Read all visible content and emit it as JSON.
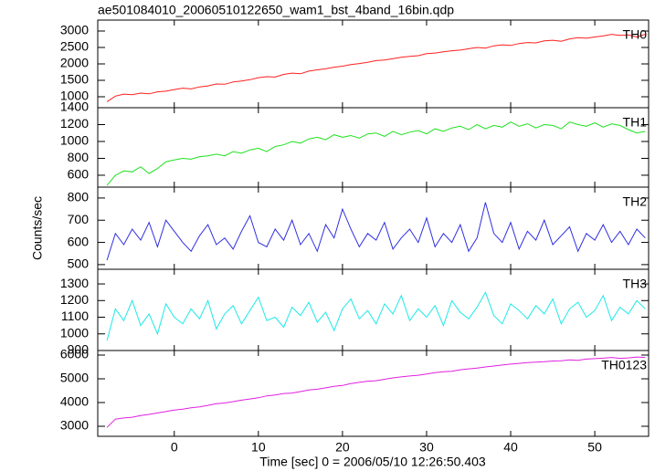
{
  "chart_data": {
    "type": "line",
    "title": "ae501084010_20060510122650_wam1_bst_4band_16bin.qdp",
    "xlabel": "Time [sec] 0 = 2006/05/10 12:26:50.403",
    "ylabel": "Counts/sec",
    "xlim": [
      -9.1,
      56.4
    ],
    "xticks": [
      0,
      10,
      20,
      30,
      40,
      50
    ],
    "x": [
      -8,
      -7,
      -6,
      -5,
      -4,
      -3,
      -2,
      -1,
      0,
      1,
      2,
      3,
      4,
      5,
      6,
      7,
      8,
      9,
      10,
      11,
      12,
      13,
      14,
      15,
      16,
      17,
      18,
      19,
      20,
      21,
      22,
      23,
      24,
      25,
      26,
      27,
      28,
      29,
      30,
      31,
      32,
      33,
      34,
      35,
      36,
      37,
      38,
      39,
      40,
      41,
      42,
      43,
      44,
      45,
      46,
      47,
      48,
      49,
      50,
      51,
      52,
      53,
      54,
      55,
      56
    ],
    "panels": [
      {
        "name": "TH0",
        "color": "#ff2020",
        "ylim": [
          667,
          3333
        ],
        "yticks": [
          1000,
          1500,
          2000,
          2500,
          3000
        ],
        "values": [
          850,
          1020,
          1080,
          1060,
          1110,
          1090,
          1150,
          1170,
          1220,
          1260,
          1240,
          1300,
          1330,
          1390,
          1380,
          1450,
          1480,
          1520,
          1580,
          1610,
          1600,
          1680,
          1720,
          1700,
          1780,
          1820,
          1850,
          1900,
          1930,
          1980,
          2010,
          2050,
          2100,
          2120,
          2160,
          2200,
          2230,
          2250,
          2310,
          2330,
          2370,
          2400,
          2420,
          2460,
          2500,
          2480,
          2550,
          2580,
          2560,
          2620,
          2650,
          2640,
          2700,
          2720,
          2690,
          2760,
          2800,
          2780,
          2820,
          2850,
          2900,
          2870,
          2880,
          2820,
          2900
        ]
      },
      {
        "name": "TH1",
        "color": "#20e020",
        "ylim": [
          459,
          1400
        ],
        "yticks": [
          600,
          800,
          1000,
          1200,
          1400
        ],
        "values": [
          480,
          600,
          650,
          640,
          700,
          620,
          680,
          760,
          780,
          800,
          790,
          820,
          830,
          850,
          830,
          880,
          860,
          900,
          920,
          880,
          940,
          960,
          1000,
          980,
          1030,
          1050,
          1020,
          1080,
          1050,
          1070,
          1040,
          1090,
          1100,
          1060,
          1120,
          1080,
          1110,
          1130,
          1090,
          1150,
          1120,
          1160,
          1180,
          1140,
          1200,
          1150,
          1190,
          1170,
          1230,
          1180,
          1210,
          1160,
          1200,
          1190,
          1150,
          1230,
          1200,
          1180,
          1220,
          1170,
          1210,
          1190,
          1140,
          1100,
          1120
        ]
      },
      {
        "name": "TH2",
        "color": "#3030e0",
        "ylim": [
          479,
          849
        ],
        "yticks": [
          500,
          600,
          700,
          800
        ],
        "values": [
          520,
          640,
          590,
          660,
          610,
          690,
          580,
          700,
          650,
          600,
          560,
          630,
          680,
          590,
          620,
          570,
          650,
          720,
          600,
          580,
          660,
          610,
          700,
          590,
          640,
          560,
          680,
          620,
          750,
          660,
          580,
          640,
          610,
          690,
          570,
          620,
          660,
          600,
          710,
          580,
          640,
          600,
          680,
          560,
          620,
          780,
          640,
          600,
          690,
          570,
          650,
          610,
          700,
          590,
          630,
          670,
          560,
          640,
          610,
          680,
          600,
          650,
          590,
          660,
          620
        ]
      },
      {
        "name": "TH3",
        "color": "#20e8e8",
        "ylim": [
          900,
          1388
        ],
        "yticks": [
          900,
          1000,
          1100,
          1200,
          1300
        ],
        "values": [
          960,
          1150,
          1080,
          1200,
          1050,
          1120,
          1000,
          1180,
          1100,
          1060,
          1150,
          1090,
          1200,
          1030,
          1120,
          1170,
          1060,
          1140,
          1220,
          1080,
          1100,
          1040,
          1160,
          1110,
          1190,
          1070,
          1130,
          1020,
          1150,
          1210,
          1090,
          1140,
          1060,
          1180,
          1120,
          1230,
          1080,
          1150,
          1100,
          1170,
          1050,
          1200,
          1130,
          1090,
          1160,
          1250,
          1110,
          1060,
          1180,
          1140,
          1090,
          1170,
          1120,
          1210,
          1060,
          1150,
          1190,
          1100,
          1140,
          1230,
          1080,
          1160,
          1120,
          1200,
          1150
        ]
      },
      {
        "name": "TH0123",
        "color": "#e020e0",
        "ylim": [
          2577,
          6192
        ],
        "yticks": [
          3000,
          4000,
          5000,
          6000
        ],
        "values": [
          2950,
          3300,
          3350,
          3380,
          3450,
          3500,
          3560,
          3620,
          3680,
          3720,
          3780,
          3820,
          3880,
          3950,
          3980,
          4040,
          4100,
          4150,
          4200,
          4280,
          4320,
          4380,
          4400,
          4460,
          4530,
          4560,
          4620,
          4680,
          4720,
          4800,
          4850,
          4900,
          4920,
          4980,
          5040,
          5080,
          5120,
          5150,
          5200,
          5260,
          5300,
          5320,
          5380,
          5420,
          5450,
          5500,
          5540,
          5580,
          5620,
          5650,
          5680,
          5700,
          5720,
          5750,
          5760,
          5800,
          5780,
          5830,
          5850,
          5870,
          5900,
          5860,
          5880,
          5920,
          5900
        ]
      }
    ]
  }
}
